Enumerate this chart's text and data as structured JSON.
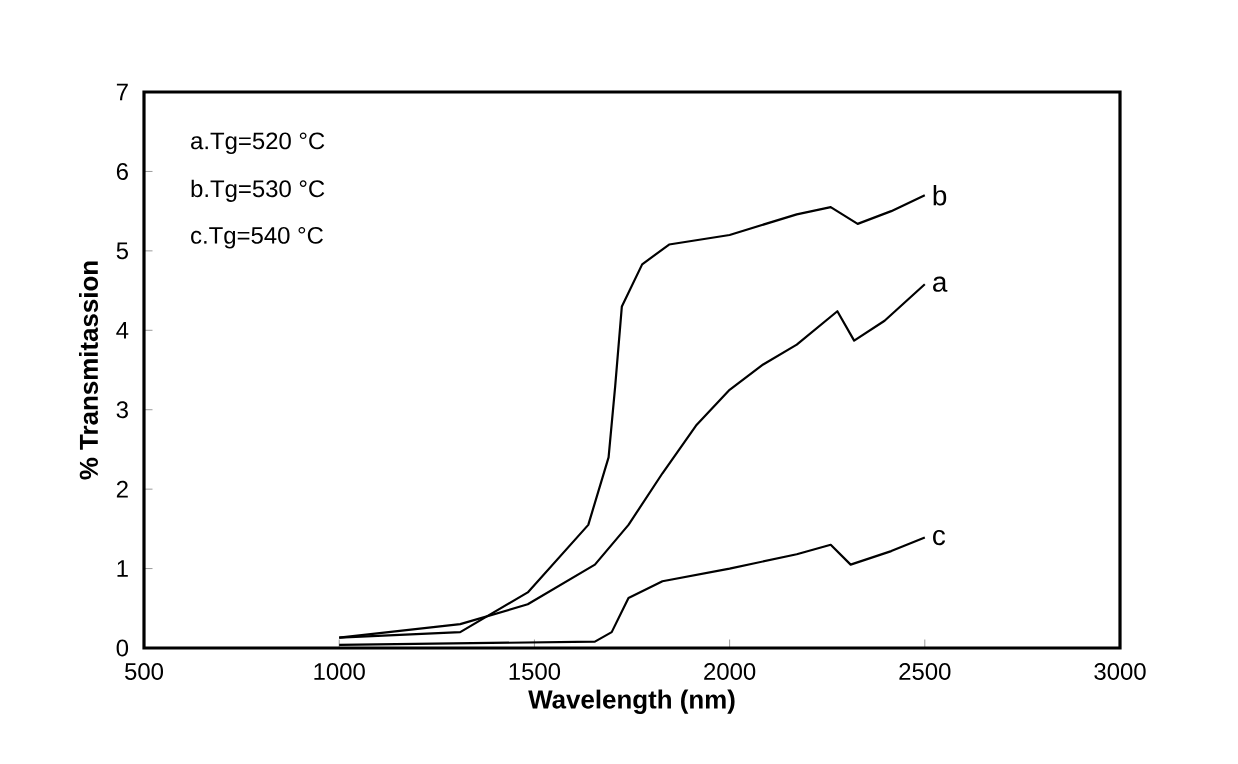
{
  "chart_data": {
    "type": "line",
    "xlabel": "Wavelength (nm)",
    "ylabel": "% Transmitassion",
    "xlim": [
      500,
      3000
    ],
    "ylim": [
      0,
      7
    ],
    "xticks": [
      500,
      1000,
      1500,
      2000,
      2500,
      3000
    ],
    "yticks": [
      0,
      1,
      2,
      3,
      4,
      5,
      6,
      7
    ],
    "annotations": [
      "a.Tg=520 °C",
      "b.Tg=530 °C",
      "c.Tg=540 °C"
    ],
    "grid": false,
    "marker": "none",
    "line_style": "solid",
    "series": [
      {
        "name": "b",
        "color": "#000000",
        "x": [
          1000,
          1310,
          1483,
          1638,
          1690,
          1707,
          1724,
          1776,
          1845,
          2000,
          2172,
          2259,
          2328,
          2414,
          2500
        ],
        "values": [
          0.13,
          0.2,
          0.7,
          1.55,
          2.4,
          3.3,
          4.3,
          4.83,
          5.08,
          5.2,
          5.46,
          5.55,
          5.34,
          5.5,
          5.7
        ]
      },
      {
        "name": "a",
        "color": "#000000",
        "x": [
          1000,
          1310,
          1483,
          1655,
          1741,
          1828,
          1914,
          2000,
          2086,
          2172,
          2276,
          2319,
          2397,
          2500
        ],
        "values": [
          0.13,
          0.3,
          0.55,
          1.05,
          1.55,
          2.2,
          2.8,
          3.25,
          3.57,
          3.82,
          4.24,
          3.87,
          4.12,
          4.58
        ]
      },
      {
        "name": "c",
        "color": "#000000",
        "x": [
          1000,
          1655,
          1698,
          1741,
          1828,
          2000,
          2172,
          2259,
          2310,
          2414,
          2500
        ],
        "values": [
          0.04,
          0.08,
          0.2,
          0.63,
          0.84,
          1.0,
          1.18,
          1.3,
          1.05,
          1.22,
          1.39
        ]
      }
    ]
  }
}
